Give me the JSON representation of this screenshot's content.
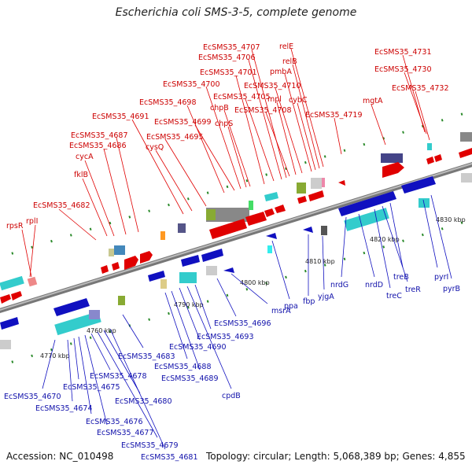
{
  "title": "Escherichia coli SMS-3-5, complete genome",
  "footer": {
    "accession": "Accession: NC_010498",
    "summary": "Topology: circular; Length: 5,068,389 bp; Genes: 4,855"
  },
  "colors": {
    "forward_strand": "#e00000",
    "reverse_strand": "#1010c0",
    "backbone": "#888888",
    "tick": "#2a8a2a"
  },
  "scale_labels": [
    "4760 kbp",
    "4770 kbp",
    "4790 kbp",
    "4800 kbp",
    "4810 kbp",
    "4820 kbp",
    "4830 kbp"
  ],
  "forward_genes": [
    "rpsR",
    "rplI",
    "EcSMS35_4682",
    "fklB",
    "cycA",
    "EcSMS35_4686",
    "EcSMS35_4687",
    "EcSMS35_4691",
    "cysQ",
    "EcSMS35_4695",
    "EcSMS35_4698",
    "EcSMS35_4699",
    "EcSMS35_4700",
    "chpS",
    "chpB",
    "EcSMS35_4701",
    "EcSMS35_4705",
    "EcSMS35_4706",
    "EcSMS35_4707",
    "EcSMS35_4708",
    "mpl",
    "EcSMS35_4710",
    "pmbA",
    "cybC",
    "relB",
    "relE",
    "EcSMS35_4719",
    "mgtA",
    "EcSMS35_4732",
    "EcSMS35_4730",
    "EcSMS35_4731"
  ],
  "reverse_genes": [
    "EcSMS35_4670",
    "EcSMS35_4674",
    "EcSMS35_4675",
    "EcSMS35_4676",
    "EcSMS35_4677",
    "EcSMS35_4678",
    "EcSMS35_4679",
    "EcSMS35_4680",
    "EcSMS35_4681",
    "EcSMS35_4683",
    "EcSMS35_4688",
    "EcSMS35_4689",
    "EcSMS35_4690",
    "cpdB",
    "EcSMS35_4693",
    "EcSMS35_4696",
    "msrA",
    "ppa",
    "fbp",
    "yjgA",
    "nrdG",
    "nrdD",
    "treC",
    "treR",
    "treB",
    "pyrI",
    "pyrB"
  ]
}
